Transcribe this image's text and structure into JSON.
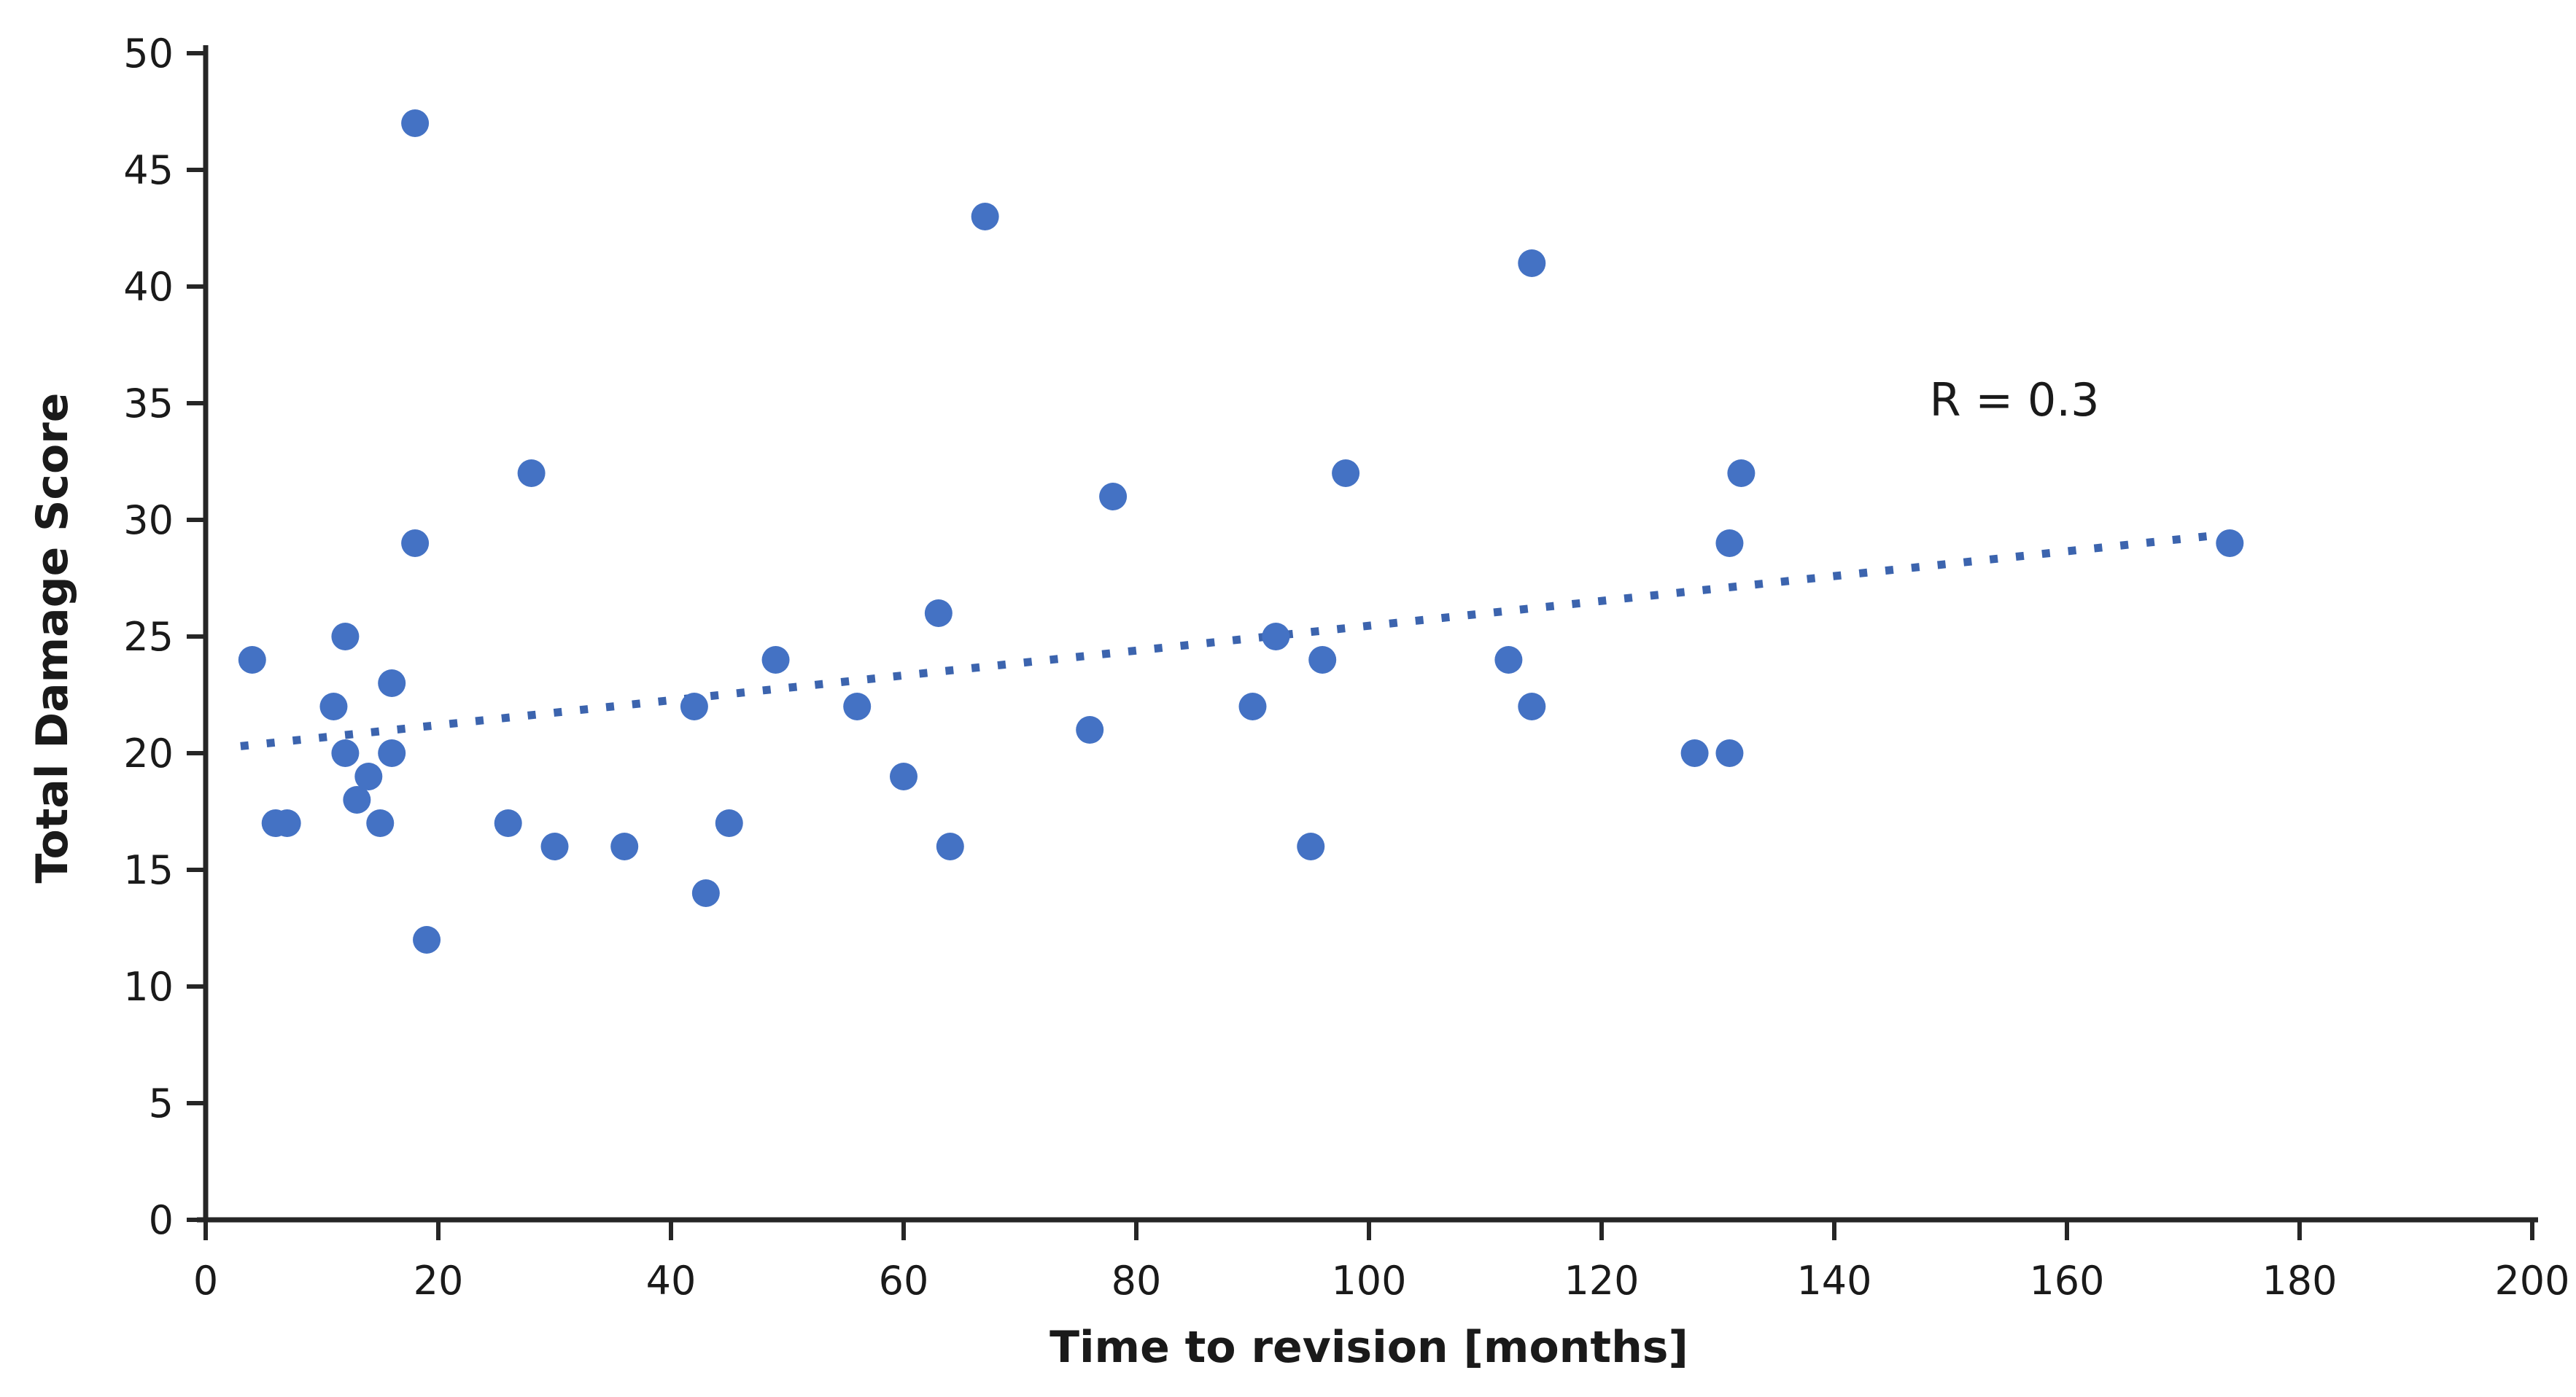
{
  "chart_data": {
    "type": "scatter",
    "title": "",
    "xlabel": "Time to revision [months]",
    "ylabel": "Total Damage Score",
    "annotation": "R = 0.3",
    "xlim": [
      0,
      200
    ],
    "ylim": [
      0,
      50
    ],
    "xticks": [
      0,
      20,
      40,
      60,
      80,
      100,
      120,
      140,
      160,
      180,
      200
    ],
    "yticks": [
      0,
      5,
      10,
      15,
      20,
      25,
      30,
      35,
      40,
      45,
      50
    ],
    "grid": "off",
    "legend": "none",
    "points": [
      [
        4,
        24
      ],
      [
        6,
        17
      ],
      [
        7,
        17
      ],
      [
        11,
        22
      ],
      [
        12,
        25
      ],
      [
        12,
        20
      ],
      [
        13,
        18
      ],
      [
        14,
        19
      ],
      [
        15,
        17
      ],
      [
        16,
        20
      ],
      [
        16,
        23
      ],
      [
        18,
        29
      ],
      [
        18,
        47
      ],
      [
        19,
        12
      ],
      [
        26,
        17
      ],
      [
        28,
        32
      ],
      [
        30,
        16
      ],
      [
        36,
        16
      ],
      [
        42,
        22
      ],
      [
        43,
        14
      ],
      [
        45,
        17
      ],
      [
        49,
        24
      ],
      [
        56,
        22
      ],
      [
        60,
        19
      ],
      [
        63,
        26
      ],
      [
        64,
        16
      ],
      [
        67,
        43
      ],
      [
        76,
        21
      ],
      [
        78,
        31
      ],
      [
        90,
        22
      ],
      [
        92,
        25
      ],
      [
        95,
        16
      ],
      [
        96,
        24
      ],
      [
        98,
        32
      ],
      [
        112,
        24
      ],
      [
        114,
        22
      ],
      [
        114,
        41
      ],
      [
        128,
        20
      ],
      [
        131,
        20
      ],
      [
        131,
        29
      ],
      [
        132,
        32
      ],
      [
        174,
        29
      ]
    ],
    "trendline": {
      "style": "dotted",
      "x_start": 3,
      "y_start": 20.3,
      "x_end": 174,
      "y_end": 29.4
    },
    "colors": {
      "marker": "#4472c4",
      "trend": "#3c64ae",
      "axis": "#262626",
      "text": "#1a1a1a"
    }
  }
}
